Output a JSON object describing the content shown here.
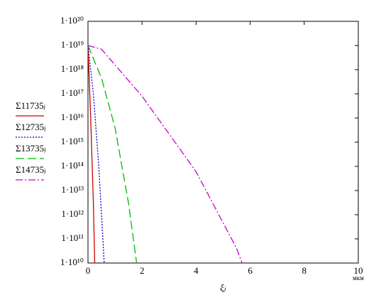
{
  "chart_data": {
    "type": "line",
    "log_y": true,
    "xlabel": "ξⱼ",
    "xunit": "мкм",
    "xlim": [
      0,
      10
    ],
    "xticks": [
      0,
      2,
      4,
      6,
      8,
      10
    ],
    "ylim": [
      10000000000.0,
      1e+20
    ],
    "yticks": [
      {
        "value": 10000000000.0,
        "label": "1·10¹⁰"
      },
      {
        "value": 100000000000.0,
        "label": "1·10¹¹"
      },
      {
        "value": 1000000000000.0,
        "label": "1·10¹²"
      },
      {
        "value": 10000000000000.0,
        "label": "1·10¹³"
      },
      {
        "value": 100000000000000.0,
        "label": "1·10¹⁴"
      },
      {
        "value": 1000000000000000.0,
        "label": "1·10¹⁵"
      },
      {
        "value": 1e+16,
        "label": "1·10¹⁶"
      },
      {
        "value": 1e+17,
        "label": "1·10¹⁷"
      },
      {
        "value": 1e+18,
        "label": "1·10¹⁸"
      },
      {
        "value": 1e+19,
        "label": "1·10¹⁹"
      },
      {
        "value": 1e+20,
        "label": "1·10²⁰"
      }
    ],
    "series": [
      {
        "name": "Σ11735ⱼ",
        "color": "#cc0000",
        "dash": "",
        "x": [
          0,
          0.1,
          0.2,
          0.25
        ],
        "values": [
          1e+19,
          1e+16,
          3000000000000.0,
          10000000000.0
        ]
      },
      {
        "name": "Σ12735ⱼ",
        "color": "#0000cc",
        "dash": "2 2",
        "x": [
          0,
          0.2,
          0.4,
          0.6
        ],
        "values": [
          1e+19,
          1e+17,
          100000000000000.0,
          10000000000.0
        ]
      },
      {
        "name": "Σ13735ⱼ",
        "color": "#00bb00",
        "dash": "12 5",
        "x": [
          0,
          0.5,
          1,
          1.5,
          1.8
        ],
        "values": [
          1e+19,
          4.5e+17,
          4000000000000000.0,
          3000000000000.0,
          10000000000.0
        ]
      },
      {
        "name": "Σ14735ⱼ",
        "color": "#cc00cc",
        "dash": "10 3 2 3",
        "x": [
          0,
          0.5,
          2,
          4,
          5.5,
          5.7
        ],
        "values": [
          1e+19,
          7e+18,
          8e+16,
          60000000000000.0,
          40000000000.0,
          10000000000.0
        ]
      }
    ]
  }
}
